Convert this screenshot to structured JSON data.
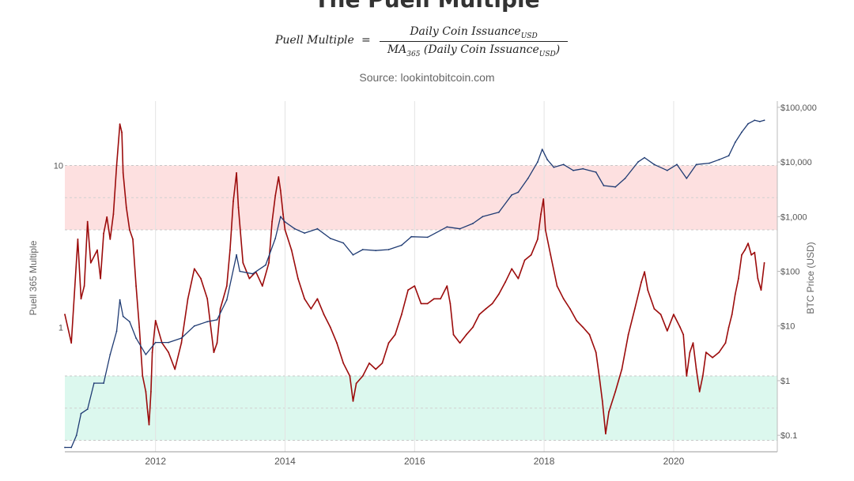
{
  "title": "The Puell Multiple",
  "formula": {
    "lhs": "Puell Multiple",
    "equals": "=",
    "numerator": "Daily Coin Issuance",
    "numerator_sub": "USD",
    "denominator_prefix": "MA",
    "denominator_prefix_sub": "365",
    "denominator_body": "(Daily Coin Issuance",
    "denominator_sub": "USD",
    "denominator_close": ")"
  },
  "source": "Source: lookintobitcoin.com",
  "chart_data": {
    "type": "line",
    "ylabel_left": "Puell 365 Multiple",
    "ylabel_right": "BTC Price (USD)",
    "left_axis": {
      "scale": "log",
      "ticks": [
        1,
        10
      ],
      "tick_labels": [
        "1",
        "10"
      ],
      "range": [
        0.17,
        25
      ]
    },
    "right_axis": {
      "scale": "log",
      "ticks": [
        0.1,
        1,
        10,
        100,
        1000,
        10000,
        100000
      ],
      "tick_labels": [
        "$0.1",
        "$1",
        "$10",
        "$100",
        "$1,000",
        "$10,000",
        "$100,000"
      ],
      "range": [
        0.05,
        130000
      ]
    },
    "x_axis": {
      "range": [
        2010.6,
        2021.6
      ],
      "ticks": [
        2012,
        2014,
        2016,
        2018,
        2020
      ],
      "tick_labels": [
        "2012",
        "2014",
        "2016",
        "2018",
        "2020"
      ]
    },
    "bands": [
      {
        "name": "high",
        "from": 4,
        "to": 10,
        "color": "#fde0e0"
      },
      {
        "name": "low",
        "from": 0.2,
        "to": 0.5,
        "color": "#dcf8ee"
      }
    ],
    "grid": true,
    "series": [
      {
        "key": "puell",
        "color": "#9c0c0c",
        "axis": "left",
        "points": [
          [
            2010.6,
            1.2
          ],
          [
            2010.7,
            0.8
          ],
          [
            2010.8,
            3.5
          ],
          [
            2010.85,
            1.5
          ],
          [
            2010.9,
            1.8
          ],
          [
            2010.95,
            4.5
          ],
          [
            2011.0,
            2.5
          ],
          [
            2011.1,
            3.0
          ],
          [
            2011.15,
            2.0
          ],
          [
            2011.2,
            3.8
          ],
          [
            2011.25,
            4.8
          ],
          [
            2011.3,
            3.5
          ],
          [
            2011.35,
            5.0
          ],
          [
            2011.4,
            10.0
          ],
          [
            2011.45,
            18.0
          ],
          [
            2011.48,
            16.0
          ],
          [
            2011.5,
            9.0
          ],
          [
            2011.55,
            5.5
          ],
          [
            2011.6,
            4.0
          ],
          [
            2011.65,
            3.5
          ],
          [
            2011.7,
            1.8
          ],
          [
            2011.75,
            1.0
          ],
          [
            2011.8,
            0.5
          ],
          [
            2011.85,
            0.4
          ],
          [
            2011.88,
            0.3
          ],
          [
            2011.9,
            0.25
          ],
          [
            2011.93,
            0.4
          ],
          [
            2011.95,
            0.7
          ],
          [
            2012.0,
            1.1
          ],
          [
            2012.1,
            0.8
          ],
          [
            2012.2,
            0.7
          ],
          [
            2012.3,
            0.55
          ],
          [
            2012.4,
            0.8
          ],
          [
            2012.5,
            1.5
          ],
          [
            2012.6,
            2.3
          ],
          [
            2012.7,
            2.0
          ],
          [
            2012.8,
            1.5
          ],
          [
            2012.9,
            0.7
          ],
          [
            2012.95,
            0.8
          ],
          [
            2013.0,
            1.3
          ],
          [
            2013.1,
            1.8
          ],
          [
            2013.15,
            3.0
          ],
          [
            2013.2,
            6.0
          ],
          [
            2013.25,
            9.0
          ],
          [
            2013.28,
            5.5
          ],
          [
            2013.35,
            2.5
          ],
          [
            2013.45,
            2.0
          ],
          [
            2013.55,
            2.2
          ],
          [
            2013.65,
            1.8
          ],
          [
            2013.75,
            2.5
          ],
          [
            2013.8,
            4.5
          ],
          [
            2013.85,
            6.5
          ],
          [
            2013.9,
            8.5
          ],
          [
            2013.93,
            7.0
          ],
          [
            2013.97,
            5.0
          ],
          [
            2014.0,
            4.0
          ],
          [
            2014.1,
            3.0
          ],
          [
            2014.2,
            2.0
          ],
          [
            2014.3,
            1.5
          ],
          [
            2014.4,
            1.3
          ],
          [
            2014.5,
            1.5
          ],
          [
            2014.6,
            1.2
          ],
          [
            2014.7,
            1.0
          ],
          [
            2014.8,
            0.8
          ],
          [
            2014.9,
            0.6
          ],
          [
            2015.0,
            0.5
          ],
          [
            2015.05,
            0.35
          ],
          [
            2015.1,
            0.45
          ],
          [
            2015.2,
            0.5
          ],
          [
            2015.3,
            0.6
          ],
          [
            2015.4,
            0.55
          ],
          [
            2015.5,
            0.6
          ],
          [
            2015.6,
            0.8
          ],
          [
            2015.7,
            0.9
          ],
          [
            2015.8,
            1.2
          ],
          [
            2015.9,
            1.7
          ],
          [
            2016.0,
            1.8
          ],
          [
            2016.1,
            1.4
          ],
          [
            2016.2,
            1.4
          ],
          [
            2016.3,
            1.5
          ],
          [
            2016.4,
            1.5
          ],
          [
            2016.5,
            1.8
          ],
          [
            2016.55,
            1.4
          ],
          [
            2016.6,
            0.9
          ],
          [
            2016.7,
            0.8
          ],
          [
            2016.8,
            0.9
          ],
          [
            2016.9,
            1.0
          ],
          [
            2017.0,
            1.2
          ],
          [
            2017.1,
            1.3
          ],
          [
            2017.2,
            1.4
          ],
          [
            2017.3,
            1.6
          ],
          [
            2017.4,
            1.9
          ],
          [
            2017.5,
            2.3
          ],
          [
            2017.6,
            2.0
          ],
          [
            2017.7,
            2.6
          ],
          [
            2017.8,
            2.8
          ],
          [
            2017.9,
            3.5
          ],
          [
            2017.95,
            5.0
          ],
          [
            2017.99,
            6.2
          ],
          [
            2018.02,
            4.0
          ],
          [
            2018.1,
            2.8
          ],
          [
            2018.2,
            1.8
          ],
          [
            2018.3,
            1.5
          ],
          [
            2018.4,
            1.3
          ],
          [
            2018.5,
            1.1
          ],
          [
            2018.6,
            1.0
          ],
          [
            2018.7,
            0.9
          ],
          [
            2018.8,
            0.7
          ],
          [
            2018.85,
            0.5
          ],
          [
            2018.9,
            0.35
          ],
          [
            2018.95,
            0.22
          ],
          [
            2019.0,
            0.3
          ],
          [
            2019.1,
            0.4
          ],
          [
            2019.2,
            0.55
          ],
          [
            2019.3,
            0.9
          ],
          [
            2019.4,
            1.3
          ],
          [
            2019.5,
            1.9
          ],
          [
            2019.55,
            2.2
          ],
          [
            2019.6,
            1.7
          ],
          [
            2019.7,
            1.3
          ],
          [
            2019.8,
            1.2
          ],
          [
            2019.9,
            0.95
          ],
          [
            2020.0,
            1.2
          ],
          [
            2020.1,
            1.0
          ],
          [
            2020.15,
            0.9
          ],
          [
            2020.2,
            0.5
          ],
          [
            2020.25,
            0.7
          ],
          [
            2020.3,
            0.8
          ],
          [
            2020.35,
            0.55
          ],
          [
            2020.4,
            0.4
          ],
          [
            2020.45,
            0.5
          ],
          [
            2020.5,
            0.7
          ],
          [
            2020.6,
            0.65
          ],
          [
            2020.7,
            0.7
          ],
          [
            2020.8,
            0.8
          ],
          [
            2020.85,
            1.0
          ],
          [
            2020.9,
            1.2
          ],
          [
            2020.95,
            1.6
          ],
          [
            2021.0,
            2.0
          ],
          [
            2021.05,
            2.8
          ],
          [
            2021.1,
            3.0
          ],
          [
            2021.15,
            3.3
          ],
          [
            2021.2,
            2.8
          ],
          [
            2021.25,
            2.9
          ],
          [
            2021.3,
            2.0
          ],
          [
            2021.35,
            1.7
          ],
          [
            2021.4,
            2.5
          ]
        ]
      },
      {
        "key": "price",
        "color": "#1f3b73",
        "axis": "right",
        "points": [
          [
            2010.6,
            0.06
          ],
          [
            2010.7,
            0.06
          ],
          [
            2010.78,
            0.1
          ],
          [
            2010.85,
            0.25
          ],
          [
            2010.95,
            0.3
          ],
          [
            2011.05,
            0.9
          ],
          [
            2011.2,
            0.9
          ],
          [
            2011.3,
            3.0
          ],
          [
            2011.4,
            8.0
          ],
          [
            2011.45,
            30.0
          ],
          [
            2011.5,
            15.0
          ],
          [
            2011.6,
            12.0
          ],
          [
            2011.7,
            6.0
          ],
          [
            2011.85,
            3.0
          ],
          [
            2012.0,
            5.0
          ],
          [
            2012.2,
            5.0
          ],
          [
            2012.4,
            6.0
          ],
          [
            2012.6,
            10.0
          ],
          [
            2012.8,
            12.0
          ],
          [
            2012.95,
            13.0
          ],
          [
            2013.1,
            30.0
          ],
          [
            2013.25,
            200.0
          ],
          [
            2013.3,
            100.0
          ],
          [
            2013.5,
            90.0
          ],
          [
            2013.7,
            130.0
          ],
          [
            2013.85,
            400.0
          ],
          [
            2013.93,
            1000.0
          ],
          [
            2014.0,
            800.0
          ],
          [
            2014.15,
            600.0
          ],
          [
            2014.3,
            500.0
          ],
          [
            2014.5,
            600.0
          ],
          [
            2014.7,
            400.0
          ],
          [
            2014.9,
            330.0
          ],
          [
            2015.05,
            200.0
          ],
          [
            2015.2,
            250.0
          ],
          [
            2015.4,
            240.0
          ],
          [
            2015.6,
            250.0
          ],
          [
            2015.8,
            300.0
          ],
          [
            2015.95,
            430.0
          ],
          [
            2016.2,
            420.0
          ],
          [
            2016.5,
            650.0
          ],
          [
            2016.7,
            600.0
          ],
          [
            2016.9,
            750.0
          ],
          [
            2017.05,
            1000.0
          ],
          [
            2017.3,
            1200.0
          ],
          [
            2017.5,
            2500.0
          ],
          [
            2017.6,
            2800.0
          ],
          [
            2017.75,
            5000.0
          ],
          [
            2017.9,
            10000.0
          ],
          [
            2017.97,
            17000.0
          ],
          [
            2018.05,
            11000.0
          ],
          [
            2018.15,
            8000.0
          ],
          [
            2018.3,
            9000.0
          ],
          [
            2018.45,
            7000.0
          ],
          [
            2018.6,
            7500.0
          ],
          [
            2018.8,
            6500.0
          ],
          [
            2018.92,
            3700.0
          ],
          [
            2019.1,
            3500.0
          ],
          [
            2019.25,
            5000.0
          ],
          [
            2019.45,
            10000.0
          ],
          [
            2019.55,
            12000.0
          ],
          [
            2019.7,
            9000.0
          ],
          [
            2019.9,
            7000.0
          ],
          [
            2020.05,
            9000.0
          ],
          [
            2020.2,
            5000.0
          ],
          [
            2020.35,
            9000.0
          ],
          [
            2020.55,
            9500.0
          ],
          [
            2020.7,
            11000.0
          ],
          [
            2020.85,
            13000.0
          ],
          [
            2020.95,
            23000.0
          ],
          [
            2021.05,
            35000.0
          ],
          [
            2021.15,
            50000.0
          ],
          [
            2021.25,
            58000.0
          ],
          [
            2021.33,
            55000.0
          ],
          [
            2021.4,
            58000.0
          ]
        ]
      }
    ]
  }
}
